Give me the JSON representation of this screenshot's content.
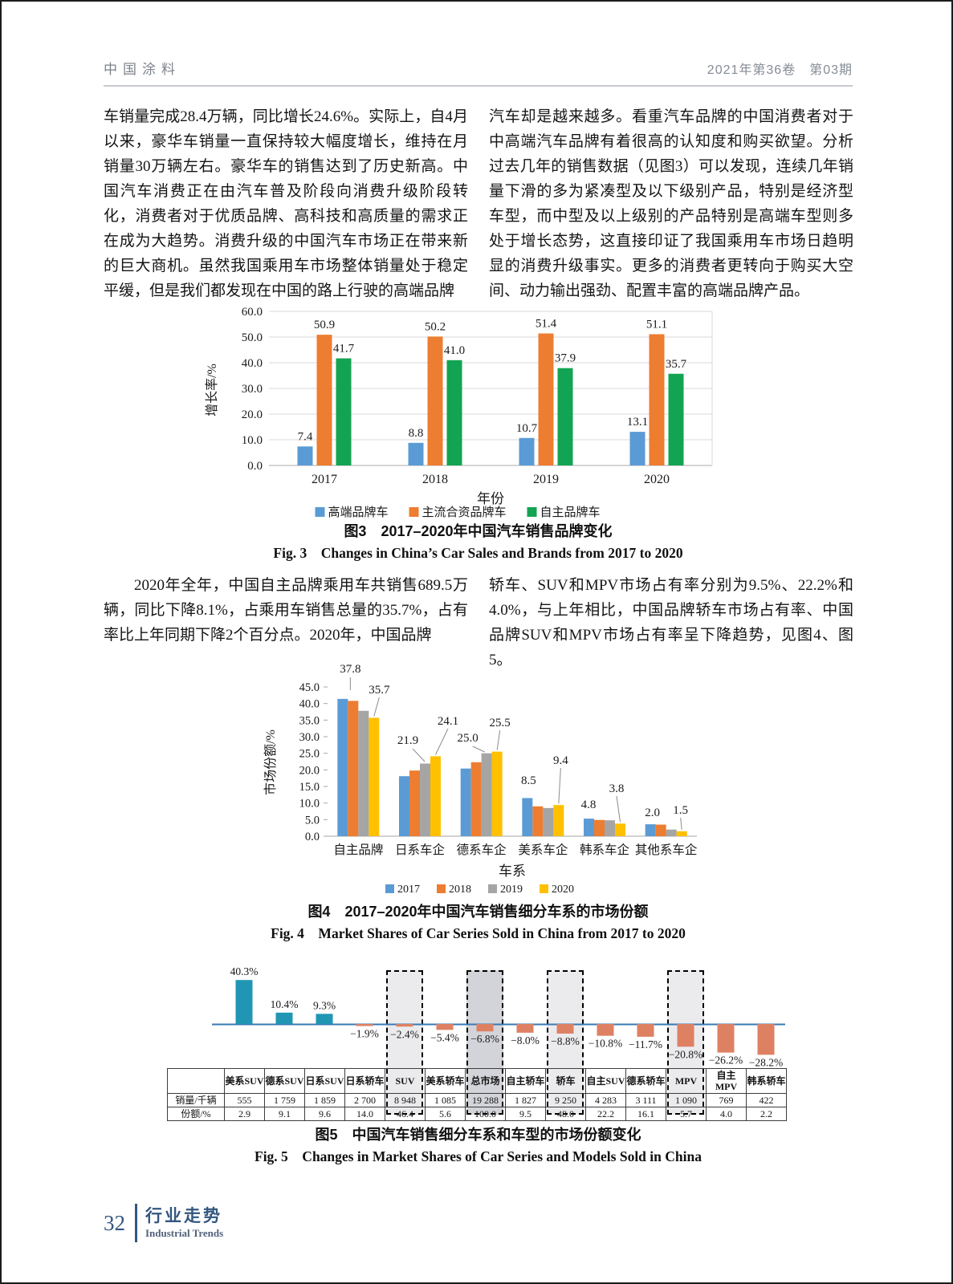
{
  "header": {
    "journal": "中国涂料",
    "issue": "2021年第36卷　第03期"
  },
  "article": {
    "left_p1": "车销量完成28.4万辆，同比增长24.6%。实际上，自4月以来，豪华车销量一直保持较大幅度增长，维持在月销量30万辆左右。豪华车的销售达到了历史新高。中国汽车消费正在由汽车普及阶段向消费升级阶段转化，消费者对于优质品牌、高科技和高质量的需求正在成为大趋势。消费升级的中国汽车市场正在带来新的巨大商机。虽然我国乘用车市场整体销量处于稳定平缓，但是我们都发现在中国的路上行驶的高端品牌",
    "right_p1": "汽车却是越来越多。看重汽车品牌的中国消费者对于中高端汽车品牌有着很高的认知度和购买欲望。分析过去几年的销售数据（见图3）可以发现，连续几年销量下滑的多为紧凑型及以下级别产品，特别是经济型车型，而中型及以上级别的产品特别是高端车型则多处于增长态势，这直接印证了我国乘用车市场日趋明显的消费升级事实。更多的消费者更转向于购买大空间、动力输出强劲、配置丰富的高端品牌产品。",
    "left_p2": "2020年全年，中国自主品牌乘用车共销售689.5万辆，同比下降8.1%，占乘用车销售总量的35.7%，占有率比上年同期下降2个百分点。2020年，中国品牌",
    "right_p2": "轿车、SUV和MPV市场占有率分别为9.5%、22.2%和4.0%，与上年相比，中国品牌轿车市场占有率、中国品牌SUV和MPV市场占有率呈下降趋势，见图4、图5。"
  },
  "figures": {
    "fig3": {
      "caption_cn": "图3　2017–2020年中国汽车销售品牌变化",
      "caption_en": "Fig. 3　Changes in China’s Car Sales and Brands from 2017 to 2020"
    },
    "fig4": {
      "caption_cn": "图4　2017–2020年中国汽车销售细分车系的市场份额",
      "caption_en": "Fig. 4　Market Shares of Car Series Sold in China from 2017 to 2020"
    },
    "fig5": {
      "caption_cn": "图5　中国汽车销售细分车系和车型的市场份额变化",
      "caption_en": "Fig. 5　Changes in Market Shares of Car Series and Models Sold in China"
    }
  },
  "chart_data": [
    {
      "id": "fig3",
      "type": "bar",
      "title": "2017–2020年中国汽车销售品牌变化",
      "categories": [
        "2017",
        "2018",
        "2019",
        "2020"
      ],
      "series": [
        {
          "name": "高端品牌车",
          "color": "#5B9BD5",
          "values": [
            7.4,
            8.8,
            10.7,
            13.1
          ]
        },
        {
          "name": "主流合资品牌车",
          "color": "#ED7D31",
          "values": [
            50.9,
            50.2,
            51.4,
            51.1
          ]
        },
        {
          "name": "自主品牌车",
          "color": "#12A452",
          "values": [
            41.7,
            41.0,
            37.9,
            35.7
          ]
        }
      ],
      "xlabel": "年份",
      "ylabel": "增长率/%",
      "ylim": [
        0,
        60
      ],
      "ytick_step": 10,
      "grid": true,
      "legend_position": "bottom"
    },
    {
      "id": "fig4",
      "type": "bar",
      "title": "2017–2020年中国汽车销售细分车系的市场份额",
      "categories": [
        "自主品牌",
        "日系车企",
        "德系车企",
        "美系车企",
        "韩系车企",
        "其他系车企"
      ],
      "series": [
        {
          "name": "2017",
          "color": "#5B9BD5",
          "values": [
            41.4,
            18.1,
            20.4,
            11.5,
            5.3,
            3.6
          ]
        },
        {
          "name": "2018",
          "color": "#ED7D31",
          "values": [
            40.8,
            19.8,
            22.3,
            9.0,
            4.9,
            3.5
          ]
        },
        {
          "name": "2019",
          "color": "#A5A5A5",
          "values": [
            37.8,
            21.9,
            25.0,
            8.5,
            4.8,
            2.0
          ]
        },
        {
          "name": "2020",
          "color": "#FFC000",
          "values": [
            35.7,
            24.1,
            25.5,
            9.4,
            3.8,
            1.5
          ]
        }
      ],
      "data_labels": {
        "black_2019": [
          "37.8",
          "21.9",
          "25.0",
          "8.5",
          "4.8",
          "2.0"
        ],
        "red_2020": [
          "35.7",
          "24.1",
          "25.5",
          "9.4",
          "3.8",
          "1.5"
        ],
        "red_color": "#C00000"
      },
      "xlabel": "车系",
      "ylabel": "市场份额/%",
      "ylim": [
        0,
        45
      ],
      "ytick_step": 5,
      "grid": false,
      "legend_position": "bottom"
    },
    {
      "id": "fig5",
      "type": "bar",
      "title": "中国汽车销售细分车系和车型的市场份额变化",
      "categories": [
        "美系SUV",
        "德系SUV",
        "日系SUV",
        "日系轿车",
        "SUV",
        "美系轿车",
        "总市场",
        "自主轿车",
        "轿车",
        "自主SUV",
        "德系轿车",
        "MPV",
        "自主MPV",
        "韩系轿车"
      ],
      "values": [
        40.3,
        10.4,
        9.3,
        -1.9,
        -2.4,
        -5.4,
        -6.8,
        -8.0,
        -8.8,
        -10.8,
        -11.7,
        -20.8,
        -26.2,
        -28.2
      ],
      "bar_colors": {
        "positive": "#2196B4",
        "negative": "#DE8163"
      },
      "axis_color": "#3879B5",
      "highlighted_columns": {
        "light": [
          "SUV",
          "轿车",
          "MPV"
        ],
        "dark": [
          "总市场"
        ]
      },
      "table": {
        "row_labels": [
          "销量/千辆",
          "份额/%"
        ],
        "sales_thousand": [
          "555",
          "1 759",
          "1 859",
          "2 700",
          "8 948",
          "1 085",
          "19 288",
          "1 827",
          "9 250",
          "4 283",
          "3 111",
          "1 090",
          "769",
          "422"
        ],
        "share_percent": [
          "2.9",
          "9.1",
          "9.6",
          "14.0",
          "46.4",
          "5.6",
          "100.0",
          "9.5",
          "48.0",
          "22.2",
          "16.1",
          "5.7",
          "4.0",
          "2.2"
        ]
      }
    }
  ],
  "footer": {
    "page_number": "32",
    "section_cn": "行业走势",
    "section_en": "Industrial Trends"
  }
}
